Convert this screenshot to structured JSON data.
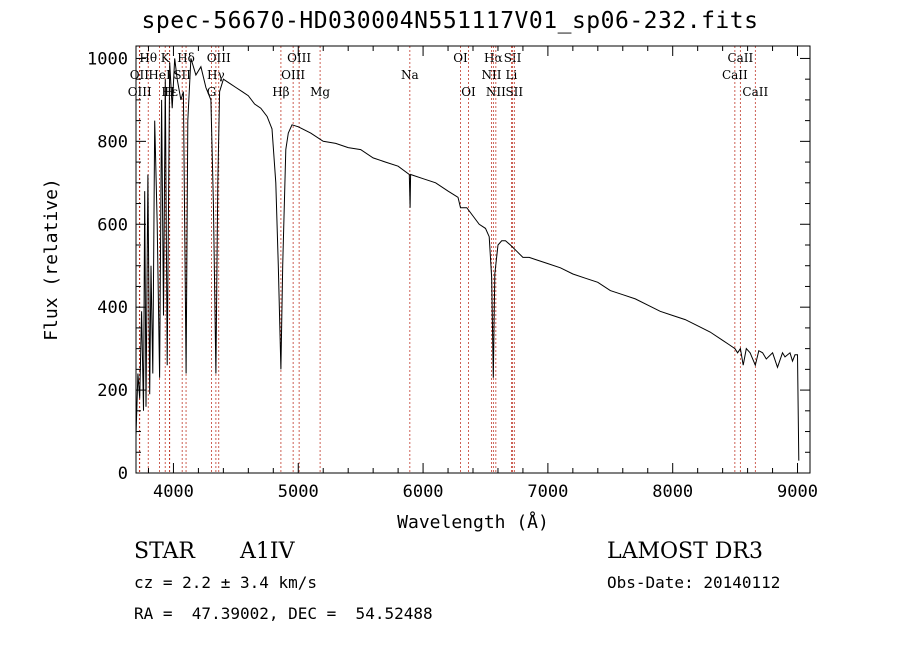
{
  "chart_data": {
    "type": "line",
    "title": "spec-56670-HD030004N551117V01_sp06-232.fits",
    "xlabel": "Wavelength (Å)",
    "ylabel": "Flux (relative)",
    "xlim": [
      3700,
      9100
    ],
    "ylim": [
      0,
      1030
    ],
    "xticks": [
      4000,
      5000,
      6000,
      7000,
      8000,
      9000
    ],
    "xtick_labels": [
      "4000",
      "5000",
      "6000",
      "7000",
      "8000",
      "9000"
    ],
    "yticks": [
      0,
      200,
      400,
      600,
      800,
      1000
    ],
    "ytick_labels": [
      "0",
      "200",
      "400",
      "600",
      "800",
      "1000"
    ],
    "series": [
      {
        "name": "flux",
        "x": [
          3700,
          3715,
          3730,
          3745,
          3760,
          3770,
          3780,
          3795,
          3810,
          3820,
          3835,
          3850,
          3870,
          3889,
          3905,
          3920,
          3935,
          3950,
          3970,
          3990,
          4010,
          4030,
          4060,
          4080,
          4101,
          4115,
          4140,
          4180,
          4220,
          4260,
          4300,
          4320,
          4340,
          4355,
          4370,
          4400,
          4450,
          4500,
          4550,
          4600,
          4650,
          4700,
          4750,
          4790,
          4820,
          4840,
          4861,
          4875,
          4900,
          4920,
          4950,
          5000,
          5100,
          5200,
          5300,
          5400,
          5500,
          5600,
          5700,
          5800,
          5890,
          5896,
          5900,
          6000,
          6100,
          6200,
          6280,
          6300,
          6350,
          6400,
          6450,
          6500,
          6530,
          6550,
          6563,
          6575,
          6600,
          6630,
          6660,
          6700,
          6750,
          6800,
          6850,
          6900,
          7000,
          7100,
          7200,
          7300,
          7400,
          7500,
          7600,
          7700,
          7800,
          7900,
          8000,
          8100,
          8200,
          8300,
          8400,
          8450,
          8498,
          8520,
          8542,
          8565,
          8590,
          8620,
          8662,
          8690,
          8720,
          8750,
          8800,
          8840,
          8880,
          8900,
          8940,
          8960,
          8980,
          9000,
          9010
        ],
        "values": [
          90,
          240,
          180,
          390,
          150,
          680,
          160,
          720,
          190,
          500,
          240,
          850,
          600,
          230,
          900,
          380,
          950,
          260,
          990,
          880,
          1000,
          950,
          900,
          920,
          240,
          850,
          1000,
          960,
          980,
          930,
          900,
          650,
          240,
          700,
          920,
          950,
          940,
          930,
          920,
          910,
          890,
          880,
          860,
          830,
          700,
          500,
          250,
          500,
          780,
          820,
          840,
          835,
          820,
          800,
          795,
          785,
          780,
          760,
          750,
          740,
          720,
          640,
          720,
          710,
          700,
          680,
          665,
          640,
          640,
          620,
          600,
          590,
          570,
          470,
          230,
          480,
          550,
          560,
          560,
          550,
          535,
          520,
          520,
          515,
          505,
          495,
          480,
          470,
          460,
          440,
          430,
          420,
          405,
          390,
          380,
          370,
          355,
          340,
          320,
          310,
          300,
          290,
          300,
          260,
          300,
          290,
          260,
          295,
          290,
          275,
          290,
          255,
          290,
          280,
          290,
          270,
          285,
          285,
          30
        ]
      }
    ],
    "line_markers": [
      {
        "label": "Hθ",
        "x": 3798,
        "row": 1
      },
      {
        "label": "OII",
        "x": 3727,
        "row": 2
      },
      {
        "label": "OIII",
        "x": 3730,
        "row": 3
      },
      {
        "label": "K",
        "x": 3934,
        "row": 1
      },
      {
        "label": "HeI",
        "x": 3889,
        "row": 2
      },
      {
        "label": "Hε",
        "x": 3970,
        "row": 3
      },
      {
        "label": "Hδ",
        "x": 4101,
        "row": 1
      },
      {
        "label": "SII",
        "x": 4070,
        "row": 2
      },
      {
        "label": "H",
        "x": 3968,
        "row": 3
      },
      {
        "label": "OIII",
        "x": 4363,
        "row": 1
      },
      {
        "label": "Hγ",
        "x": 4340,
        "row": 2
      },
      {
        "label": "G",
        "x": 4305,
        "row": 3
      },
      {
        "label": "OIII",
        "x": 5007,
        "row": 1
      },
      {
        "label": "OIII",
        "x": 4959,
        "row": 2
      },
      {
        "label": "Hβ",
        "x": 4861,
        "row": 3
      },
      {
        "label": "Mg",
        "x": 5175,
        "row": 3
      },
      {
        "label": "Na",
        "x": 5894,
        "row": 2
      },
      {
        "label": "OI",
        "x": 6300,
        "row": 1
      },
      {
        "label": "OI",
        "x": 6364,
        "row": 3
      },
      {
        "label": "Hα",
        "x": 6563,
        "row": 1
      },
      {
        "label": "NII",
        "x": 6548,
        "row": 2
      },
      {
        "label": "NII",
        "x": 6583,
        "row": 3
      },
      {
        "label": "SII",
        "x": 6717,
        "row": 1
      },
      {
        "label": "Li",
        "x": 6708,
        "row": 2
      },
      {
        "label": "SII",
        "x": 6731,
        "row": 3
      },
      {
        "label": "CaII",
        "x": 8542,
        "row": 1
      },
      {
        "label": "CaII",
        "x": 8498,
        "row": 2
      },
      {
        "label": "CaII",
        "x": 8662,
        "row": 3
      }
    ]
  },
  "info": {
    "object_class": "STAR",
    "subclass": "A1IV",
    "redshift": "cz = 2.2 ± 3.4 km/s",
    "coords": "RA =  47.39002, DEC =  54.52488",
    "survey": "LAMOST DR3",
    "obs_date": "Obs-Date: 20140112"
  },
  "colors": {
    "line": "#000000",
    "marker": "#c0392b",
    "axis": "#000000"
  }
}
